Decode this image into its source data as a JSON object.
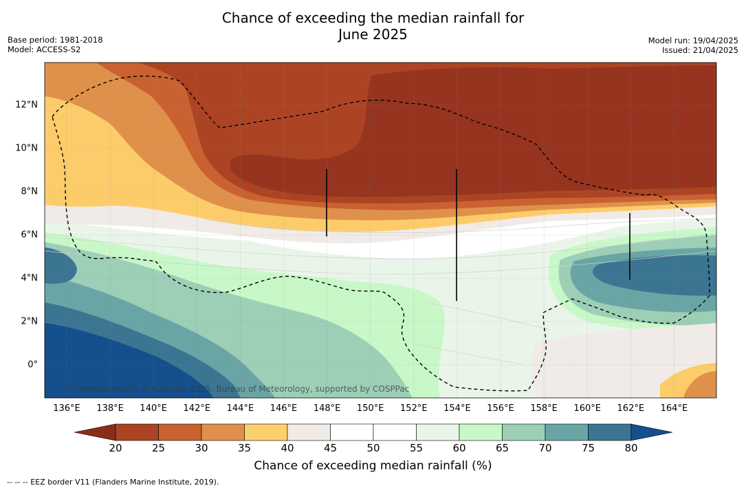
{
  "title_line1": "Chance of exceeding the median rainfall for",
  "title_line2": "June 2025",
  "base_period": "Base period: 1981-2018",
  "model": "Model: ACCESS-S2",
  "model_run": "Model run: 19/04/2025",
  "issued": "Issued: 21/04/2025",
  "credit": "© Commonwealth of Australia 2025, Bureau of Meteorology, supported by COSPPac",
  "colorbar_label": "Chance of exceeding median rainfall (%)",
  "footnote": "-- -- -- EEZ border V11 (Flanders Marine Institute, 2019).",
  "x_ticks": [
    "136°E",
    "138°E",
    "140°E",
    "142°E",
    "144°E",
    "146°E",
    "148°E",
    "150°E",
    "152°E",
    "154°E",
    "156°E",
    "158°E",
    "160°E",
    "162°E",
    "164°E"
  ],
  "y_ticks": [
    "12°N",
    "10°N",
    "8°N",
    "6°N",
    "4°N",
    "2°N",
    "0°"
  ],
  "colorbar_ticks": [
    "20",
    "25",
    "30",
    "35",
    "40",
    "45",
    "50",
    "55",
    "60",
    "65",
    "70",
    "75",
    "80"
  ],
  "colorbar_colors": [
    "#8c2d1c",
    "#ac4424",
    "#c96230",
    "#df914b",
    "#fdd06b",
    "#f0ebe6",
    "#ffffff",
    "#ffffff",
    "#eaf5ea",
    "#c9f8c8",
    "#9ccfb6",
    "#6aa5a6",
    "#3b7592",
    "#154f8d"
  ],
  "map_colors": {
    "cat20": "#96341f",
    "cat25": "#ac4424",
    "cat30": "#c96230",
    "cat35": "#df914b",
    "cat40": "#fdcc6a",
    "cat45": "#f0ebe6",
    "cat50": "#ffffff",
    "cat60": "#eaf5ea",
    "cat65": "#c9f8c8",
    "cat70": "#9ccfb6",
    "cat75": "#6aa5a6",
    "cat80": "#3b7592",
    "cat85": "#154f8d"
  }
}
